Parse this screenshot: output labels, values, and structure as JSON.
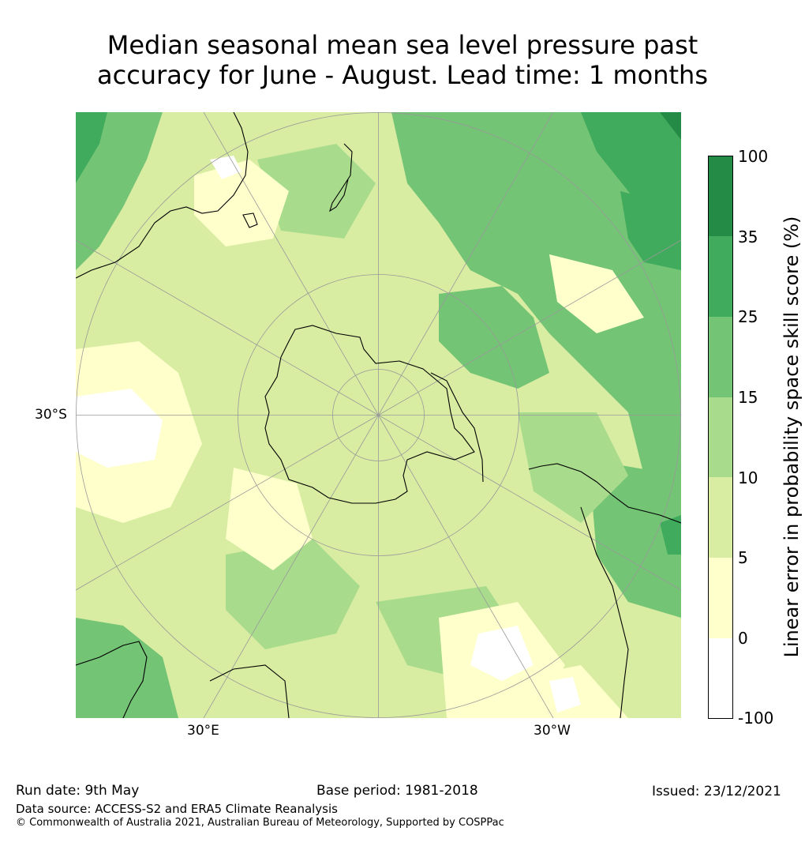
{
  "title_line1": "Median seasonal mean sea level pressure past",
  "title_line2": "accuracy for June - August. Lead time: 1 months",
  "map": {
    "projection": "south-polar-stereographic",
    "lat_label": "30°S",
    "lon_label_left": "30°E",
    "lon_label_right": "30°W",
    "ocean_base_color": "#d8eda2",
    "coastline_color": "#000000",
    "graticule_color": "#999999"
  },
  "colorbar": {
    "title": "Linear error in probability space skill score (%)",
    "ticks": [
      "100",
      "35",
      "25",
      "15",
      "10",
      "5",
      "0",
      "-100"
    ],
    "bins": [
      {
        "from": 35,
        "to": 100,
        "color": "#238b45"
      },
      {
        "from": 25,
        "to": 35,
        "color": "#41ab5d"
      },
      {
        "from": 15,
        "to": 25,
        "color": "#74c476"
      },
      {
        "from": 10,
        "to": 15,
        "color": "#a8dc8c"
      },
      {
        "from": 5,
        "to": 10,
        "color": "#d8eda2"
      },
      {
        "from": 0,
        "to": 5,
        "color": "#ffffcc"
      },
      {
        "from": -100,
        "to": 0,
        "color": "#ffffff"
      }
    ]
  },
  "footer": {
    "run_date": "Run date: 9th May",
    "base_period": "Base period: 1981-2018",
    "issued": "Issued: 23/12/2021",
    "data_source": "Data source: ACCESS-S2 and ERA5 Climate Reanalysis",
    "copyright": "© Commonwealth of Australia 2021, Australian Bureau of Meteorology, Supported by COSPPac"
  }
}
